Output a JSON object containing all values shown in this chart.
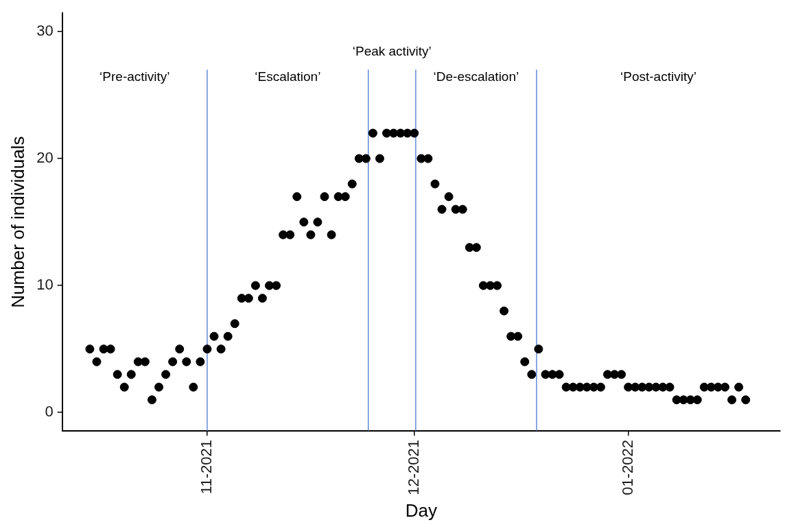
{
  "chart_data": {
    "type": "scatter",
    "xlabel": "Day",
    "ylabel": "Number of individuals",
    "x": [
      "2021-10-15",
      "2021-10-16",
      "2021-10-17",
      "2021-10-18",
      "2021-10-19",
      "2021-10-20",
      "2021-10-21",
      "2021-10-22",
      "2021-10-23",
      "2021-10-24",
      "2021-10-25",
      "2021-10-26",
      "2021-10-27",
      "2021-10-28",
      "2021-10-29",
      "2021-10-30",
      "2021-10-31",
      "2021-11-01",
      "2021-11-02",
      "2021-11-03",
      "2021-11-04",
      "2021-11-05",
      "2021-11-06",
      "2021-11-07",
      "2021-11-08",
      "2021-11-09",
      "2021-11-10",
      "2021-11-11",
      "2021-11-12",
      "2021-11-13",
      "2021-11-14",
      "2021-11-15",
      "2021-11-16",
      "2021-11-17",
      "2021-11-18",
      "2021-11-19",
      "2021-11-20",
      "2021-11-21",
      "2021-11-22",
      "2021-11-23",
      "2021-11-24",
      "2021-11-25",
      "2021-11-26",
      "2021-11-27",
      "2021-11-28",
      "2021-11-29",
      "2021-11-30",
      "2021-12-01",
      "2021-12-02",
      "2021-12-03",
      "2021-12-04",
      "2021-12-05",
      "2021-12-06",
      "2021-12-07",
      "2021-12-08",
      "2021-12-09",
      "2021-12-10",
      "2021-12-11",
      "2021-12-12",
      "2021-12-13",
      "2021-12-14",
      "2021-12-15",
      "2021-12-16",
      "2021-12-17",
      "2021-12-18",
      "2021-12-19",
      "2021-12-20",
      "2021-12-21",
      "2021-12-22",
      "2021-12-23",
      "2021-12-24",
      "2021-12-25",
      "2021-12-26",
      "2021-12-27",
      "2021-12-28",
      "2021-12-29",
      "2021-12-30",
      "2021-12-31",
      "2022-01-01",
      "2022-01-02",
      "2022-01-03",
      "2022-01-04",
      "2022-01-05",
      "2022-01-06",
      "2022-01-07",
      "2022-01-08",
      "2022-01-09",
      "2022-01-10",
      "2022-01-11",
      "2022-01-12",
      "2022-01-13",
      "2022-01-14",
      "2022-01-15",
      "2022-01-16",
      "2022-01-17",
      "2022-01-18"
    ],
    "values": [
      5,
      4,
      5,
      5,
      3,
      2,
      3,
      4,
      4,
      1,
      2,
      3,
      4,
      5,
      4,
      2,
      4,
      5,
      6,
      5,
      6,
      7,
      9,
      9,
      10,
      9,
      10,
      10,
      14,
      14,
      17,
      15,
      14,
      15,
      17,
      14,
      17,
      17,
      18,
      20,
      20,
      22,
      20,
      22,
      22,
      22,
      22,
      22,
      20,
      20,
      18,
      16,
      17,
      16,
      16,
      13,
      13,
      10,
      10,
      10,
      8,
      6,
      6,
      4,
      3,
      5,
      3,
      3,
      3,
      2,
      2,
      2,
      2,
      2,
      2,
      3,
      3,
      3,
      2,
      2,
      2,
      2,
      2,
      2,
      2,
      1,
      1,
      1,
      1,
      2,
      2,
      2,
      2,
      1,
      2,
      1
    ],
    "color": "#000000",
    "marker": "circle",
    "xlim": [
      "2021-10-11",
      "2022-01-23"
    ],
    "xticks": [
      {
        "value": "2021-11-01",
        "label": "11-2021"
      },
      {
        "value": "2021-12-01",
        "label": "12-2021"
      },
      {
        "value": "2022-01-01",
        "label": "01-2022"
      }
    ],
    "ylim": [
      -1.45,
      31.45
    ],
    "yticks": [
      0,
      10,
      20,
      30
    ],
    "grid": false,
    "ref_lines": [
      {
        "axis": "x",
        "value": "2021-11-01",
        "color": "#4a78d0"
      },
      {
        "axis": "x",
        "value": "2021-11-24T08:00",
        "color": "#4a78d0"
      },
      {
        "axis": "x",
        "value": "2021-12-01T05:00",
        "color": "#4a78d0"
      },
      {
        "axis": "x",
        "value": "2021-12-18T17:00",
        "color": "#4a78d0"
      }
    ],
    "annotations": [
      "‘Pre-activity’",
      "‘Escalation’",
      "‘Peak activity’",
      "‘De-escalation’",
      "‘Post-activity’"
    ]
  }
}
